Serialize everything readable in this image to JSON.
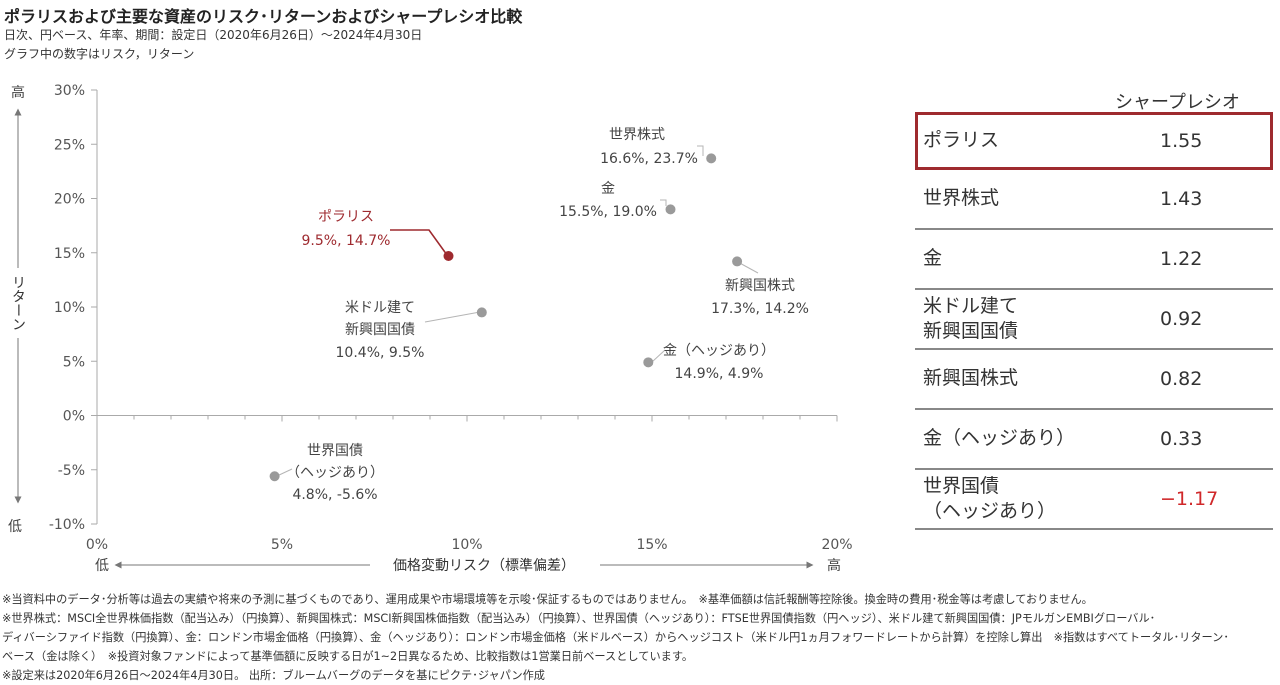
{
  "title": "ポラリスおよび主要な資産のリスク･リターンおよびシャープレシオ比較",
  "subtitle": "日次、円ベース、年率、期間：設定日（2020年6月26日）～2024年4月30日",
  "subtitle2": "グラフ中の数字はリスク，リターン",
  "colors": {
    "accent": "#9e2a2f",
    "point": "#9a9a9a",
    "negative": "#d0282a"
  },
  "chart_data": {
    "type": "scatter",
    "xlabel": "価格変動リスク（標準偏差）",
    "ylabel": "リターン",
    "xlim": [
      0,
      20
    ],
    "ylim": [
      -10,
      30
    ],
    "x_ticks": [
      "0%",
      "5%",
      "10%",
      "15%",
      "20%"
    ],
    "y_ticks": [
      "-10%",
      "-5%",
      "0%",
      "5%",
      "10%",
      "15%",
      "20%",
      "25%",
      "30%"
    ],
    "x_low": "低",
    "x_high": "高",
    "y_low": "低",
    "y_high": "高",
    "grid": false,
    "points": [
      {
        "name": "世界株式",
        "label": "16.6%, 23.7%",
        "x": 16.6,
        "y": 23.7
      },
      {
        "name": "金",
        "label": "15.5%, 19.0%",
        "x": 15.5,
        "y": 19.0
      },
      {
        "name": "ポラリス",
        "label": "9.5%, 14.7%",
        "x": 9.5,
        "y": 14.7,
        "highlight": true
      },
      {
        "name": "新興国株式",
        "label": "17.3%, 14.2%",
        "x": 17.3,
        "y": 14.2
      },
      {
        "name": "米ドル建て\n新興国国債",
        "label": "10.4%, 9.5%",
        "x": 10.4,
        "y": 9.5
      },
      {
        "name": "金（ヘッジあり）",
        "label": "14.9%, 4.9%",
        "x": 14.9,
        "y": 4.9
      },
      {
        "name": "世界国債\n（ヘッジあり）",
        "label": "4.8%, -5.6%",
        "x": 4.8,
        "y": -5.6
      }
    ]
  },
  "sharpe": {
    "header": "シャープレシオ",
    "rows": [
      {
        "name": "ポラリス",
        "value": "1.55"
      },
      {
        "name": "世界株式",
        "value": "1.43"
      },
      {
        "name": "金",
        "value": "1.22"
      },
      {
        "name": "米ドル建て\n新興国国債",
        "value": "0.92"
      },
      {
        "name": "新興国株式",
        "value": "0.82"
      },
      {
        "name": "金（ヘッジあり）",
        "value": "0.33"
      },
      {
        "name": "世界国債\n（ヘッジあり）",
        "value": "−1.17"
      }
    ]
  },
  "notes": [
    "※当資料中のデータ･分析等は過去の実績や将来の予測に基づくものであり、運用成果や市場環境等を示唆･保証するものではありません。　※基準価額は信託報酬等控除後。換金時の費用･税金等は考慮しておりません。",
    "※世界株式：MSCI全世界株価指数（配当込み）（円換算）、新興国株式：MSCI新興国株価指数（配当込み）（円換算）、世界国債（ヘッジあり）：FTSE世界国債指数（円ヘッジ）、米ドル建て新興国国債：JPモルガンEMBIグローバル･",
    "ディバーシファイド指数（円換算）、金：ロンドン市場金価格（円換算）、金（ヘッジあり）：ロンドン市場金価格（米ドルベース）からヘッジコスト（米ドル円1ヵ月フォワードレートから計算）を控除し算出　※指数はすべてトータル･リターン･",
    "ベース（金は除く）　※投資対象ファンドによって基準価額に反映する日が1~2日異なるため、比較指数は1営業日前ベースとしています。",
    "※設定来は2020年6月26日～2024年4月30日。 出所：ブルームバーグのデータを基にピクテ･ジャパン作成"
  ]
}
